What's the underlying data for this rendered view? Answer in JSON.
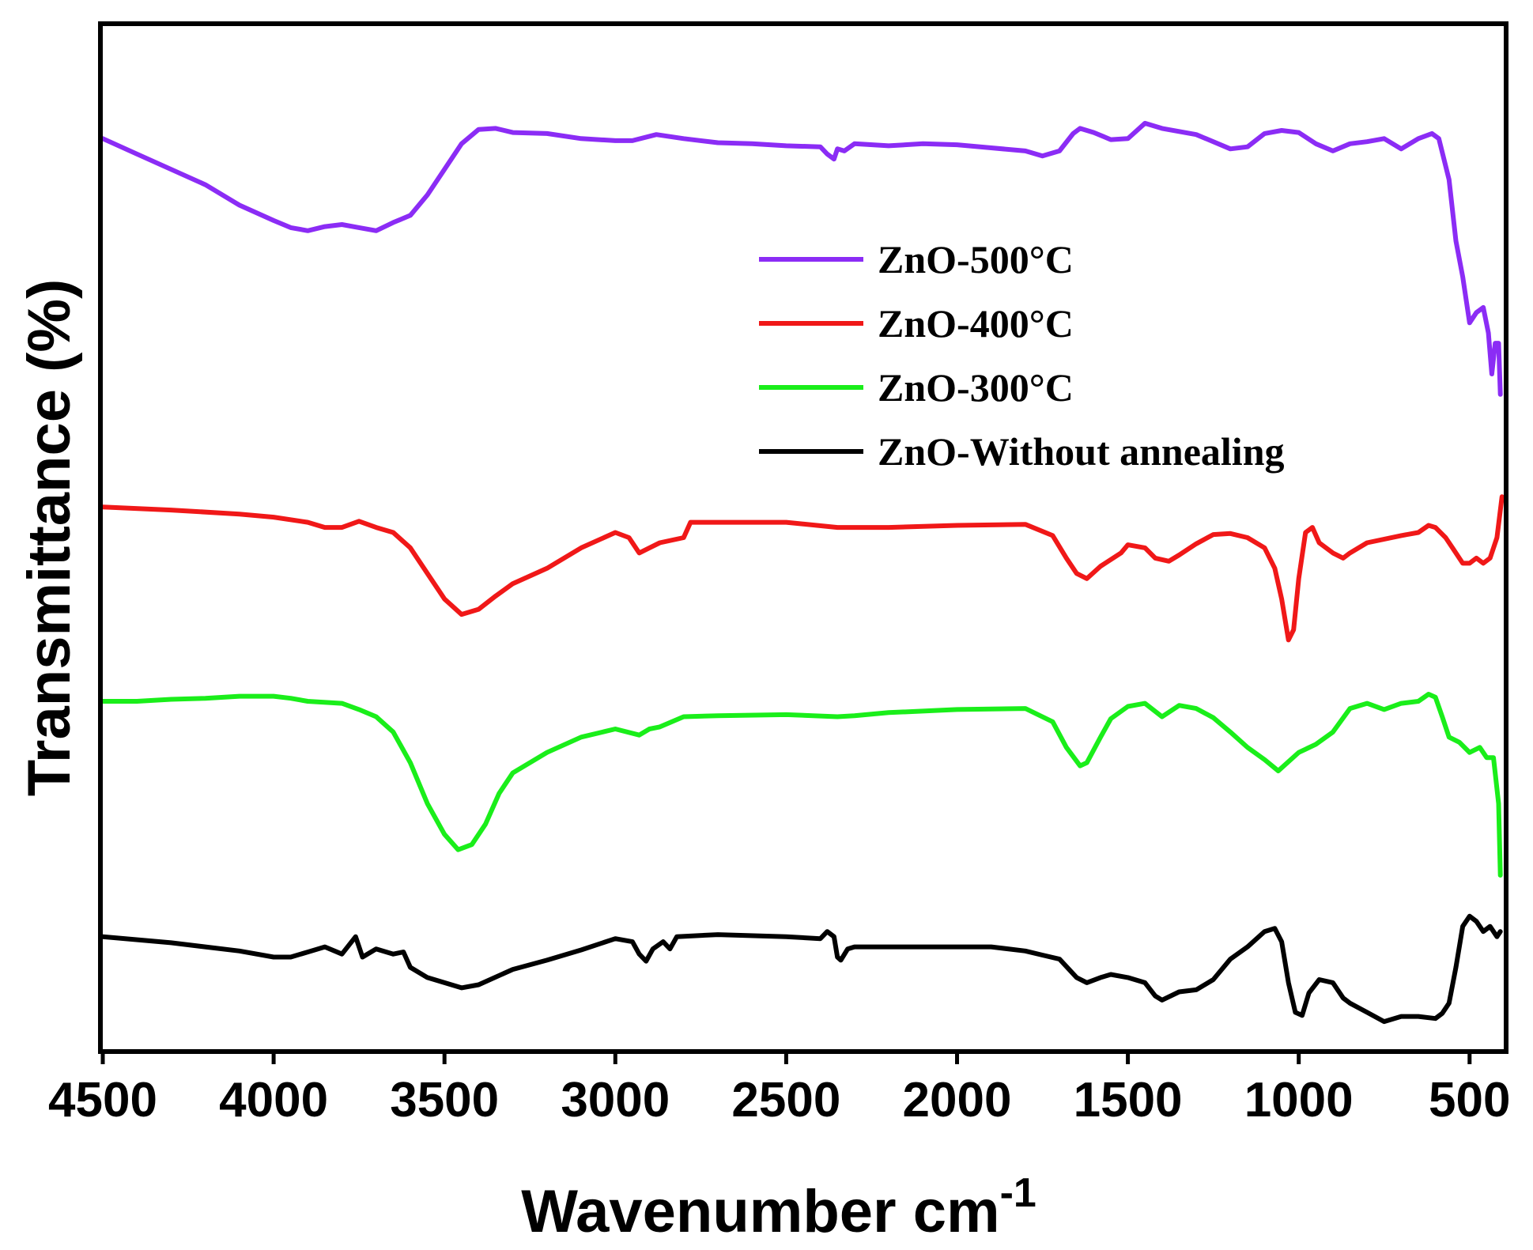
{
  "chart_data": {
    "type": "line",
    "title": "",
    "xlabel": "Wavenumber cm",
    "xlabel_superscript": "-1",
    "ylabel": "Transmittance (%)",
    "xlim": [
      4500,
      400
    ],
    "ylim": [
      0,
      100
    ],
    "y_ticks_shown": false,
    "grid": false,
    "legend_position": "upper-right",
    "x_ticks": [
      {
        "value": 4500,
        "label": "4500"
      },
      {
        "value": 4000,
        "label": "4000"
      },
      {
        "value": 3500,
        "label": "3500"
      },
      {
        "value": 3000,
        "label": "3000"
      },
      {
        "value": 2500,
        "label": "2500"
      },
      {
        "value": 2000,
        "label": "2000"
      },
      {
        "value": 1500,
        "label": "1500"
      },
      {
        "value": 1000,
        "label": "1000"
      },
      {
        "value": 500,
        "label": "500"
      }
    ],
    "series": [
      {
        "name": "ZnO-500°C",
        "color": "#8b2cf5",
        "points": [
          [
            4500,
            89
          ],
          [
            4400,
            87.5
          ],
          [
            4300,
            86
          ],
          [
            4200,
            84.5
          ],
          [
            4100,
            82.5
          ],
          [
            4000,
            81
          ],
          [
            3950,
            80.3
          ],
          [
            3900,
            80
          ],
          [
            3850,
            80.4
          ],
          [
            3800,
            80.6
          ],
          [
            3750,
            80.3
          ],
          [
            3700,
            80
          ],
          [
            3650,
            80.8
          ],
          [
            3600,
            81.5
          ],
          [
            3550,
            83.5
          ],
          [
            3500,
            86
          ],
          [
            3450,
            88.5
          ],
          [
            3400,
            89.9
          ],
          [
            3350,
            90
          ],
          [
            3300,
            89.6
          ],
          [
            3200,
            89.5
          ],
          [
            3100,
            89
          ],
          [
            3000,
            88.8
          ],
          [
            2950,
            88.8
          ],
          [
            2880,
            89.4
          ],
          [
            2800,
            89
          ],
          [
            2700,
            88.6
          ],
          [
            2600,
            88.5
          ],
          [
            2500,
            88.3
          ],
          [
            2400,
            88.2
          ],
          [
            2380,
            87.5
          ],
          [
            2360,
            87
          ],
          [
            2350,
            88
          ],
          [
            2330,
            87.8
          ],
          [
            2300,
            88.5
          ],
          [
            2200,
            88.3
          ],
          [
            2100,
            88.5
          ],
          [
            2000,
            88.4
          ],
          [
            1900,
            88.1
          ],
          [
            1800,
            87.8
          ],
          [
            1750,
            87.3
          ],
          [
            1700,
            87.8
          ],
          [
            1660,
            89.5
          ],
          [
            1640,
            90
          ],
          [
            1600,
            89.6
          ],
          [
            1550,
            88.9
          ],
          [
            1500,
            89
          ],
          [
            1450,
            90.5
          ],
          [
            1400,
            90
          ],
          [
            1300,
            89.4
          ],
          [
            1200,
            88
          ],
          [
            1150,
            88.2
          ],
          [
            1100,
            89.5
          ],
          [
            1050,
            89.8
          ],
          [
            1000,
            89.6
          ],
          [
            950,
            88.5
          ],
          [
            900,
            87.8
          ],
          [
            850,
            88.5
          ],
          [
            800,
            88.7
          ],
          [
            750,
            89
          ],
          [
            700,
            88
          ],
          [
            650,
            89
          ],
          [
            610,
            89.5
          ],
          [
            590,
            89
          ],
          [
            560,
            85
          ],
          [
            540,
            79
          ],
          [
            520,
            75.5
          ],
          [
            500,
            71
          ],
          [
            480,
            72
          ],
          [
            460,
            72.5
          ],
          [
            445,
            70
          ],
          [
            435,
            66
          ],
          [
            425,
            69
          ],
          [
            415,
            69
          ],
          [
            410,
            64
          ]
        ]
      },
      {
        "name": "ZnO-400°C",
        "color": "#f01818",
        "points": [
          [
            4500,
            53
          ],
          [
            4300,
            52.7
          ],
          [
            4100,
            52.3
          ],
          [
            4000,
            52
          ],
          [
            3900,
            51.5
          ],
          [
            3850,
            51
          ],
          [
            3800,
            51
          ],
          [
            3750,
            51.6
          ],
          [
            3700,
            51
          ],
          [
            3650,
            50.5
          ],
          [
            3600,
            49
          ],
          [
            3550,
            46.5
          ],
          [
            3500,
            44
          ],
          [
            3450,
            42.5
          ],
          [
            3400,
            43
          ],
          [
            3350,
            44.3
          ],
          [
            3300,
            45.5
          ],
          [
            3200,
            47
          ],
          [
            3100,
            49
          ],
          [
            3000,
            50.5
          ],
          [
            2960,
            50
          ],
          [
            2930,
            48.5
          ],
          [
            2900,
            49
          ],
          [
            2870,
            49.5
          ],
          [
            2800,
            50
          ],
          [
            2780,
            51.5
          ],
          [
            2700,
            51.5
          ],
          [
            2500,
            51.5
          ],
          [
            2350,
            51
          ],
          [
            2200,
            51
          ],
          [
            2000,
            51.2
          ],
          [
            1800,
            51.3
          ],
          [
            1720,
            50.2
          ],
          [
            1680,
            48
          ],
          [
            1650,
            46.5
          ],
          [
            1620,
            46
          ],
          [
            1580,
            47.2
          ],
          [
            1520,
            48.5
          ],
          [
            1500,
            49.3
          ],
          [
            1450,
            49
          ],
          [
            1420,
            48
          ],
          [
            1380,
            47.7
          ],
          [
            1350,
            48.3
          ],
          [
            1300,
            49.4
          ],
          [
            1250,
            50.3
          ],
          [
            1200,
            50.4
          ],
          [
            1150,
            50
          ],
          [
            1100,
            49
          ],
          [
            1070,
            47
          ],
          [
            1050,
            44
          ],
          [
            1030,
            40
          ],
          [
            1015,
            41
          ],
          [
            1000,
            46
          ],
          [
            980,
            50.5
          ],
          [
            960,
            51
          ],
          [
            940,
            49.5
          ],
          [
            900,
            48.5
          ],
          [
            870,
            48
          ],
          [
            850,
            48.5
          ],
          [
            800,
            49.5
          ],
          [
            700,
            50.2
          ],
          [
            650,
            50.5
          ],
          [
            620,
            51.2
          ],
          [
            600,
            51
          ],
          [
            570,
            50
          ],
          [
            550,
            49
          ],
          [
            520,
            47.5
          ],
          [
            500,
            47.5
          ],
          [
            480,
            48
          ],
          [
            460,
            47.5
          ],
          [
            440,
            48
          ],
          [
            420,
            50
          ],
          [
            405,
            54
          ]
        ]
      },
      {
        "name": "ZnO-300°C",
        "color": "#1aee1a",
        "points": [
          [
            4500,
            34
          ],
          [
            4400,
            34
          ],
          [
            4300,
            34.2
          ],
          [
            4200,
            34.3
          ],
          [
            4100,
            34.5
          ],
          [
            4000,
            34.5
          ],
          [
            3950,
            34.3
          ],
          [
            3900,
            34
          ],
          [
            3800,
            33.8
          ],
          [
            3750,
            33.2
          ],
          [
            3700,
            32.5
          ],
          [
            3650,
            31
          ],
          [
            3600,
            28
          ],
          [
            3550,
            24
          ],
          [
            3500,
            21
          ],
          [
            3460,
            19.5
          ],
          [
            3420,
            20
          ],
          [
            3380,
            22
          ],
          [
            3340,
            25
          ],
          [
            3300,
            27
          ],
          [
            3200,
            29
          ],
          [
            3100,
            30.5
          ],
          [
            3000,
            31.3
          ],
          [
            2930,
            30.7
          ],
          [
            2900,
            31.3
          ],
          [
            2870,
            31.5
          ],
          [
            2800,
            32.5
          ],
          [
            2700,
            32.6
          ],
          [
            2500,
            32.7
          ],
          [
            2350,
            32.5
          ],
          [
            2300,
            32.6
          ],
          [
            2200,
            32.9
          ],
          [
            2000,
            33.2
          ],
          [
            1800,
            33.3
          ],
          [
            1720,
            32
          ],
          [
            1680,
            29.5
          ],
          [
            1640,
            27.7
          ],
          [
            1620,
            28
          ],
          [
            1580,
            30.5
          ],
          [
            1550,
            32.3
          ],
          [
            1500,
            33.5
          ],
          [
            1450,
            33.8
          ],
          [
            1400,
            32.5
          ],
          [
            1350,
            33.6
          ],
          [
            1300,
            33.3
          ],
          [
            1250,
            32.4
          ],
          [
            1200,
            31
          ],
          [
            1150,
            29.5
          ],
          [
            1100,
            28.3
          ],
          [
            1060,
            27.2
          ],
          [
            1000,
            29
          ],
          [
            950,
            29.8
          ],
          [
            900,
            31
          ],
          [
            850,
            33.3
          ],
          [
            800,
            33.8
          ],
          [
            750,
            33.2
          ],
          [
            700,
            33.8
          ],
          [
            650,
            34
          ],
          [
            620,
            34.7
          ],
          [
            600,
            34.4
          ],
          [
            580,
            32.5
          ],
          [
            560,
            30.5
          ],
          [
            530,
            30
          ],
          [
            500,
            29
          ],
          [
            470,
            29.5
          ],
          [
            450,
            28.5
          ],
          [
            430,
            28.5
          ],
          [
            415,
            24
          ],
          [
            410,
            17
          ]
        ]
      },
      {
        "name": "ZnO-Without annealing",
        "color": "#000000",
        "points": [
          [
            4500,
            11
          ],
          [
            4300,
            10.4
          ],
          [
            4100,
            9.6
          ],
          [
            4000,
            9
          ],
          [
            3950,
            9
          ],
          [
            3900,
            9.5
          ],
          [
            3850,
            10
          ],
          [
            3800,
            9.3
          ],
          [
            3760,
            11
          ],
          [
            3740,
            9
          ],
          [
            3700,
            9.8
          ],
          [
            3650,
            9.3
          ],
          [
            3620,
            9.5
          ],
          [
            3600,
            8
          ],
          [
            3550,
            7
          ],
          [
            3500,
            6.5
          ],
          [
            3450,
            6
          ],
          [
            3400,
            6.3
          ],
          [
            3300,
            7.8
          ],
          [
            3200,
            8.7
          ],
          [
            3100,
            9.7
          ],
          [
            3000,
            10.8
          ],
          [
            2950,
            10.5
          ],
          [
            2930,
            9.3
          ],
          [
            2910,
            8.6
          ],
          [
            2890,
            9.8
          ],
          [
            2860,
            10.5
          ],
          [
            2840,
            9.8
          ],
          [
            2820,
            11
          ],
          [
            2700,
            11.2
          ],
          [
            2500,
            11
          ],
          [
            2400,
            10.8
          ],
          [
            2380,
            11.5
          ],
          [
            2360,
            11
          ],
          [
            2350,
            9
          ],
          [
            2340,
            8.7
          ],
          [
            2320,
            9.8
          ],
          [
            2300,
            10
          ],
          [
            2200,
            10
          ],
          [
            2000,
            10
          ],
          [
            1900,
            10
          ],
          [
            1800,
            9.6
          ],
          [
            1750,
            9.2
          ],
          [
            1700,
            8.8
          ],
          [
            1650,
            7
          ],
          [
            1620,
            6.5
          ],
          [
            1580,
            7
          ],
          [
            1550,
            7.3
          ],
          [
            1500,
            7
          ],
          [
            1450,
            6.5
          ],
          [
            1420,
            5.2
          ],
          [
            1400,
            4.8
          ],
          [
            1350,
            5.6
          ],
          [
            1300,
            5.8
          ],
          [
            1250,
            6.8
          ],
          [
            1200,
            8.8
          ],
          [
            1150,
            10
          ],
          [
            1100,
            11.5
          ],
          [
            1070,
            11.8
          ],
          [
            1050,
            10.5
          ],
          [
            1030,
            6.5
          ],
          [
            1010,
            3.6
          ],
          [
            990,
            3.3
          ],
          [
            970,
            5.5
          ],
          [
            940,
            6.8
          ],
          [
            900,
            6.5
          ],
          [
            870,
            5
          ],
          [
            850,
            4.5
          ],
          [
            800,
            3.6
          ],
          [
            750,
            2.7
          ],
          [
            700,
            3.2
          ],
          [
            650,
            3.2
          ],
          [
            600,
            3
          ],
          [
            580,
            3.5
          ],
          [
            560,
            4.5
          ],
          [
            540,
            8
          ],
          [
            520,
            12
          ],
          [
            500,
            13
          ],
          [
            480,
            12.5
          ],
          [
            460,
            11.5
          ],
          [
            440,
            12
          ],
          [
            420,
            11
          ],
          [
            410,
            11.5
          ]
        ]
      }
    ]
  }
}
